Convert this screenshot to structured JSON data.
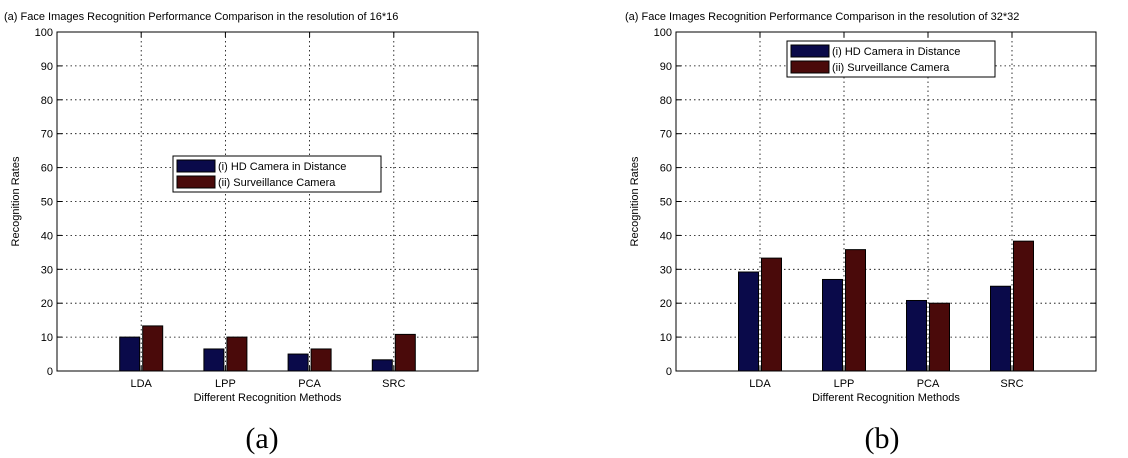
{
  "chart_data": [
    {
      "type": "bar",
      "title": "(a) Face Images Recognition Performance Comparison in the resolution of 16*16",
      "xlabel": "Different Recognition Methods",
      "ylabel": "Recognition Rates",
      "caption": "(a)",
      "categories": [
        "LDA",
        "LPP",
        "PCA",
        "SRC"
      ],
      "series": [
        {
          "name": "(i) HD Camera in Distance",
          "values": [
            10,
            6.5,
            5,
            3.3
          ]
        },
        {
          "name": "(ii) Surveillance Camera",
          "values": [
            13.3,
            10,
            6.5,
            10.8
          ]
        }
      ],
      "ylim": [
        0,
        100
      ],
      "yticks": [
        0,
        10,
        20,
        30,
        40,
        50,
        60,
        70,
        80,
        90,
        100
      ],
      "grid": true,
      "legend_position": "center",
      "colors": [
        "#0a0a4a",
        "#4a0a0a"
      ]
    },
    {
      "type": "bar",
      "title": "(a) Face Images Recognition Performance Comparison in the resolution of 32*32",
      "xlabel": "Different Recognition Methods",
      "ylabel": "Recognition Rates",
      "caption": "(b)",
      "categories": [
        "LDA",
        "LPP",
        "PCA",
        "SRC"
      ],
      "series": [
        {
          "name": "(i) HD Camera in Distance",
          "values": [
            29.2,
            27,
            20.8,
            25
          ]
        },
        {
          "name": "(ii) Surveillance Camera",
          "values": [
            33.3,
            35.8,
            20,
            38.3
          ]
        }
      ],
      "ylim": [
        0,
        100
      ],
      "yticks": [
        0,
        10,
        20,
        30,
        40,
        50,
        60,
        70,
        80,
        90,
        100
      ],
      "grid": true,
      "legend_position": "top-center",
      "colors": [
        "#0a0a4a",
        "#4a0a0a"
      ]
    }
  ]
}
